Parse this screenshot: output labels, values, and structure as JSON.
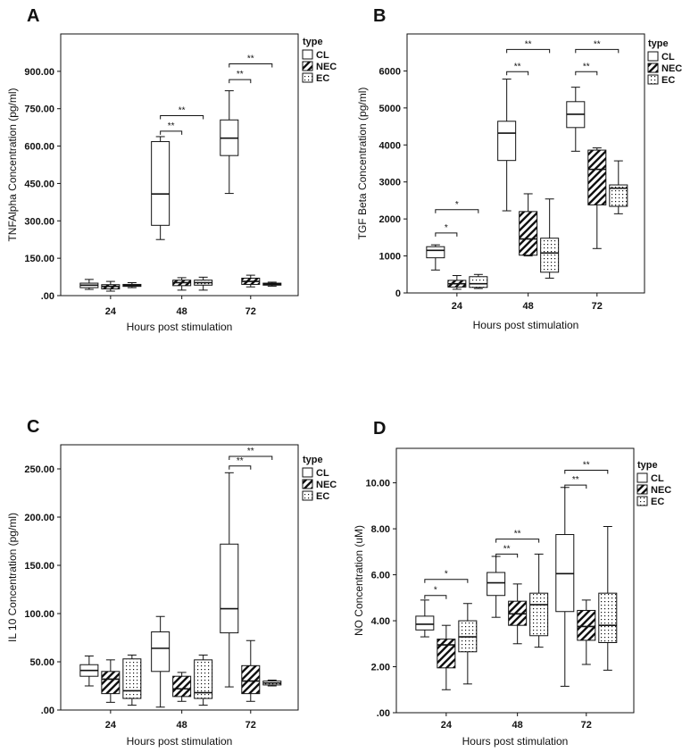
{
  "figure": {
    "colors": {
      "ink": "#111111",
      "background": "#ffffff"
    }
  },
  "chart_data": [
    {
      "panel": "A",
      "type": "box",
      "title": "",
      "xlabel": "Hours post stimulation",
      "ylabel": "TNFAlpha Concentration (pg/ml)",
      "ylim": [
        0,
        1050
      ],
      "yticks": [
        0,
        150,
        300,
        450,
        600,
        750,
        900
      ],
      "ytick_labels": [
        ".00",
        "150.00",
        "300.00",
        "450.00",
        "600.00",
        "750.00",
        "900.00"
      ],
      "categories": [
        "24",
        "48",
        "72"
      ],
      "legend": {
        "title": "type",
        "entries": [
          "CL",
          "NEC",
          "EC"
        ]
      },
      "series": [
        {
          "name": "CL",
          "pattern": "none",
          "boxes": [
            {
              "min": 25,
              "q1": 32,
              "median": 42,
              "q3": 50,
              "max": 65
            },
            {
              "min": 225,
              "q1": 282,
              "median": 408,
              "q3": 618,
              "max": 638
            },
            {
              "min": 410,
              "q1": 562,
              "median": 632,
              "q3": 705,
              "max": 822
            }
          ]
        },
        {
          "name": "NEC",
          "pattern": "hatch",
          "boxes": [
            {
              "min": 18,
              "q1": 27,
              "median": 37,
              "q3": 44,
              "max": 57
            },
            {
              "min": 22,
              "q1": 40,
              "median": 52,
              "q3": 62,
              "max": 72
            },
            {
              "min": 35,
              "q1": 45,
              "median": 57,
              "q3": 70,
              "max": 82
            }
          ]
        },
        {
          "name": "EC",
          "pattern": "dots",
          "boxes": [
            {
              "min": 32,
              "q1": 37,
              "median": 41,
              "q3": 45,
              "max": 52
            },
            {
              "min": 22,
              "q1": 42,
              "median": 52,
              "q3": 62,
              "max": 74
            },
            {
              "min": 38,
              "q1": 42,
              "median": 46,
              "q3": 50,
              "max": 54
            }
          ]
        }
      ],
      "significance": [
        {
          "group": "48",
          "from": "CL",
          "to": "NEC",
          "label": "**",
          "y": 660
        },
        {
          "group": "48",
          "from": "CL",
          "to": "EC",
          "label": "**",
          "y": 722
        },
        {
          "group": "72",
          "from": "CL",
          "to": "NEC",
          "label": "**",
          "y": 867
        },
        {
          "group": "72",
          "from": "CL",
          "to": "EC",
          "label": "**",
          "y": 930
        }
      ]
    },
    {
      "panel": "B",
      "type": "box",
      "title": "",
      "xlabel": "Hours post stimulation",
      "ylabel": "TGF Beta Concentration (pg/ml)",
      "ylim": [
        0,
        7000
      ],
      "yticks": [
        0,
        1000,
        2000,
        3000,
        4000,
        5000,
        6000
      ],
      "ytick_labels": [
        "0",
        "1000",
        "2000",
        "3000",
        "4000",
        "5000",
        "6000"
      ],
      "categories": [
        "24",
        "48",
        "72"
      ],
      "legend": {
        "title": "type",
        "entries": [
          "CL",
          "NEC",
          "EC"
        ]
      },
      "series": [
        {
          "name": "CL",
          "pattern": "none",
          "boxes": [
            {
              "min": 620,
              "q1": 950,
              "median": 1150,
              "q3": 1250,
              "max": 1300
            },
            {
              "min": 2220,
              "q1": 3580,
              "median": 4320,
              "q3": 4640,
              "max": 5780
            },
            {
              "min": 3830,
              "q1": 4470,
              "median": 4830,
              "q3": 5170,
              "max": 5560
            }
          ]
        },
        {
          "name": "NEC",
          "pattern": "hatch",
          "boxes": [
            {
              "min": 100,
              "q1": 160,
              "median": 250,
              "q3": 340,
              "max": 470
            },
            {
              "min": 1000,
              "q1": 1020,
              "median": 1460,
              "q3": 2200,
              "max": 2680
            },
            {
              "min": 1200,
              "q1": 2380,
              "median": 3340,
              "q3": 3860,
              "max": 3920
            }
          ]
        },
        {
          "name": "EC",
          "pattern": "dots",
          "boxes": [
            {
              "min": 120,
              "q1": 150,
              "median": 250,
              "q3": 440,
              "max": 500
            },
            {
              "min": 400,
              "q1": 560,
              "median": 1080,
              "q3": 1480,
              "max": 2540
            },
            {
              "min": 2140,
              "q1": 2340,
              "median": 2830,
              "q3": 2920,
              "max": 3570
            }
          ]
        }
      ],
      "significance": [
        {
          "group": "24",
          "from": "CL",
          "to": "NEC",
          "label": "*",
          "y": 1620
        },
        {
          "group": "24",
          "from": "CL",
          "to": "EC",
          "label": "*",
          "y": 2250
        },
        {
          "group": "48",
          "from": "CL",
          "to": "NEC",
          "label": "**",
          "y": 5980
        },
        {
          "group": "48",
          "from": "CL",
          "to": "EC",
          "label": "**",
          "y": 6580
        },
        {
          "group": "72",
          "from": "CL",
          "to": "NEC",
          "label": "**",
          "y": 5980
        },
        {
          "group": "72",
          "from": "CL",
          "to": "EC",
          "label": "**",
          "y": 6580
        }
      ]
    },
    {
      "panel": "C",
      "type": "box",
      "title": "",
      "xlabel": "Hours post stimulation",
      "ylabel": "IL 10 Concentration (pg/ml)",
      "ylim": [
        0,
        275
      ],
      "yticks": [
        0,
        50,
        100,
        150,
        200,
        250
      ],
      "ytick_labels": [
        ".00",
        "50.00",
        "100.00",
        "150.00",
        "200.00",
        "250.00"
      ],
      "categories": [
        "24",
        "48",
        "72"
      ],
      "legend": {
        "title": "type",
        "entries": [
          "CL",
          "NEC",
          "EC"
        ]
      },
      "series": [
        {
          "name": "CL",
          "pattern": "none",
          "boxes": [
            {
              "min": 25,
              "q1": 35,
              "median": 41,
              "q3": 47,
              "max": 56
            },
            {
              "min": 3,
              "q1": 40,
              "median": 64,
              "q3": 81,
              "max": 97
            },
            {
              "min": 24,
              "q1": 80,
              "median": 105,
              "q3": 172,
              "max": 246
            }
          ]
        },
        {
          "name": "NEC",
          "pattern": "hatch",
          "boxes": [
            {
              "min": 8,
              "q1": 17,
              "median": 32,
              "q3": 40,
              "max": 52
            },
            {
              "min": 9,
              "q1": 14,
              "median": 22,
              "q3": 35,
              "max": 39
            },
            {
              "min": 9,
              "q1": 17,
              "median": 30,
              "q3": 46,
              "max": 72
            }
          ]
        },
        {
          "name": "EC",
          "pattern": "dots",
          "boxes": [
            {
              "min": 5,
              "q1": 12,
              "median": 20,
              "q3": 53,
              "max": 57
            },
            {
              "min": 5,
              "q1": 12,
              "median": 18,
              "q3": 52,
              "max": 57
            },
            {
              "min": 25,
              "q1": 26,
              "median": 28,
              "q3": 30,
              "max": 31
            }
          ]
        }
      ],
      "significance": [
        {
          "group": "72",
          "from": "CL",
          "to": "NEC",
          "label": "**",
          "y": 253
        },
        {
          "group": "72",
          "from": "CL",
          "to": "EC",
          "label": "**",
          "y": 263
        }
      ]
    },
    {
      "panel": "D",
      "type": "box",
      "title": "",
      "xlabel": "Hours post stimulation",
      "ylabel": "NO Concentration (uM)",
      "ylim": [
        0,
        11.5
      ],
      "yticks": [
        0,
        2,
        4,
        6,
        8,
        10
      ],
      "ytick_labels": [
        ".00",
        "2.00",
        "4.00",
        "6.00",
        "8.00",
        "10.00"
      ],
      "categories": [
        "24",
        "48",
        "72"
      ],
      "legend": {
        "title": "type",
        "entries": [
          "CL",
          "NEC",
          "EC"
        ]
      },
      "series": [
        {
          "name": "CL",
          "pattern": "none",
          "boxes": [
            {
              "min": 3.3,
              "q1": 3.6,
              "median": 3.85,
              "q3": 4.2,
              "max": 4.9
            },
            {
              "min": 4.15,
              "q1": 5.1,
              "median": 5.65,
              "q3": 6.1,
              "max": 6.8
            },
            {
              "min": 1.15,
              "q1": 4.4,
              "median": 6.05,
              "q3": 7.75,
              "max": 9.8
            }
          ]
        },
        {
          "name": "NEC",
          "pattern": "hatch",
          "boxes": [
            {
              "min": 1.0,
              "q1": 1.95,
              "median": 2.95,
              "q3": 3.2,
              "max": 3.8
            },
            {
              "min": 3.0,
              "q1": 3.8,
              "median": 4.3,
              "q3": 4.85,
              "max": 5.6
            },
            {
              "min": 2.1,
              "q1": 3.15,
              "median": 3.75,
              "q3": 4.45,
              "max": 4.9
            }
          ]
        },
        {
          "name": "EC",
          "pattern": "dots",
          "boxes": [
            {
              "min": 1.25,
              "q1": 2.65,
              "median": 3.3,
              "q3": 4.0,
              "max": 4.75
            },
            {
              "min": 2.85,
              "q1": 3.35,
              "median": 4.7,
              "q3": 5.2,
              "max": 6.9
            },
            {
              "min": 1.85,
              "q1": 3.05,
              "median": 3.8,
              "q3": 5.2,
              "max": 8.1
            }
          ]
        }
      ],
      "significance": [
        {
          "group": "24",
          "from": "CL",
          "to": "NEC",
          "label": "*",
          "y": 5.1
        },
        {
          "group": "24",
          "from": "CL",
          "to": "EC",
          "label": "*",
          "y": 5.8
        },
        {
          "group": "48",
          "from": "CL",
          "to": "NEC",
          "label": "**",
          "y": 6.9
        },
        {
          "group": "48",
          "from": "CL",
          "to": "EC",
          "label": "**",
          "y": 7.55
        },
        {
          "group": "72",
          "from": "CL",
          "to": "NEC",
          "label": "**",
          "y": 9.9
        },
        {
          "group": "72",
          "from": "CL",
          "to": "EC",
          "label": "**",
          "y": 10.55
        }
      ]
    }
  ]
}
